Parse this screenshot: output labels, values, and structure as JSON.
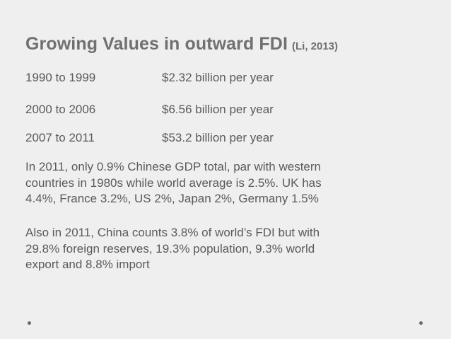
{
  "title": {
    "main": "Growing Values in outward FDI",
    "citation": "(Li, 2013)"
  },
  "rows": [
    {
      "period": "1990 to 1999",
      "value": "$2.32 billion per year"
    },
    {
      "period": "2000 to 2006",
      "value": "$6.56 billion per year"
    },
    {
      "period": "2007 to 2011",
      "value": "$53.2 billion per year"
    }
  ],
  "paragraphs": [
    "In 2011, only 0.9% Chinese GDP total, par with western\ncountries in 1980s while world average is 2.5%. UK has\n4.4%, France 3.2%, US 2%, Japan 2%, Germany 1.5%",
    "Also in 2011, China counts 3.8% of world’s FDI but with\n29.8% foreign reserves, 19.3% population, 9.3% world\nexport and 8.8% import"
  ]
}
